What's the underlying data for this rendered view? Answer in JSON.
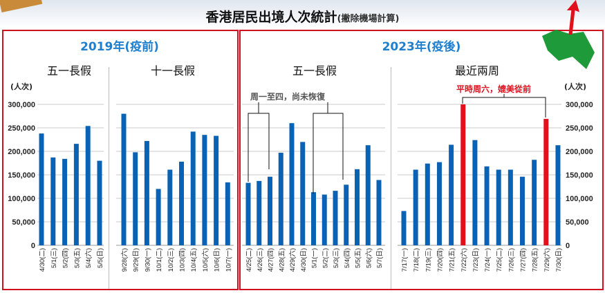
{
  "title": "香港居民出境人次統計",
  "title_note": "(撇除機場計算)",
  "panels": {
    "left_title": "2019年(疫前)",
    "right_title": "2023年(疫後)"
  },
  "unit_label": "(人次)",
  "colors": {
    "bar": "#0a62b4",
    "highlight": "#e0101c",
    "frame": "#d0101e",
    "era": "#1f7fcf"
  },
  "annotations": {
    "weekday": "周一至四，尚未恢復",
    "saturday": "平時周六，媲美從前"
  },
  "chart_data": [
    {
      "type": "bar",
      "title": "五一長假",
      "ylabel": "(人次)",
      "ylim": [
        0,
        300000
      ],
      "yticks": [
        0,
        50000,
        100000,
        150000,
        200000,
        250000,
        300000
      ],
      "grid": true,
      "categories": [
        "4/30(二)",
        "5/1(三)",
        "5/2(四)",
        "5/3(五)",
        "5/4(六)",
        "5/5(日)"
      ],
      "values": [
        238000,
        187000,
        184000,
        216000,
        254000,
        180000
      ]
    },
    {
      "type": "bar",
      "title": "十一長假",
      "ylim": [
        0,
        300000
      ],
      "grid": true,
      "categories": [
        "9/28(六)",
        "9/29(日)",
        "9/30(一)",
        "10/1(二)",
        "10/2(三)",
        "10/3(四)",
        "10/4(五)",
        "10/5(六)",
        "10/6(日)",
        "10/7(一)"
      ],
      "values": [
        280000,
        198000,
        222000,
        120000,
        161000,
        178000,
        242000,
        235000,
        233000,
        134000
      ]
    },
    {
      "type": "bar",
      "title": "五一長假",
      "ylim": [
        0,
        300000
      ],
      "grid": true,
      "categories": [
        "4/25(二)",
        "4/26(三)",
        "4/27(四)",
        "4/28(五)",
        "4/29(六)",
        "4/30(日)",
        "5/1(一)",
        "5/2(二)",
        "5/3(三)",
        "5/4(四)",
        "5/5(五)",
        "5/6(六)",
        "5/7(日)"
      ],
      "values": [
        133000,
        137000,
        146000,
        197000,
        260000,
        220000,
        113000,
        108000,
        116000,
        129000,
        162000,
        213000,
        139000
      ]
    },
    {
      "type": "bar",
      "title": "最近兩周",
      "ylabel": "(人次)",
      "ylim": [
        0,
        300000
      ],
      "yticks": [
        0,
        50000,
        100000,
        150000,
        200000,
        250000,
        300000
      ],
      "grid": true,
      "categories": [
        "7/17(一)",
        "7/18(二)",
        "7/19(三)",
        "7/20(四)",
        "7/21(五)",
        "7/22(六)",
        "7/23(日)",
        "7/24(一)",
        "7/25(二)",
        "7/26(三)",
        "7/27(四)",
        "7/28(五)",
        "7/29(六)",
        "7/30(日)"
      ],
      "values": [
        73000,
        161000,
        174000,
        177000,
        214000,
        300000,
        224000,
        168000,
        161000,
        161000,
        146000,
        182000,
        269000,
        213000
      ],
      "highlighted": [
        "7/22(六)",
        "7/29(六)"
      ]
    }
  ]
}
